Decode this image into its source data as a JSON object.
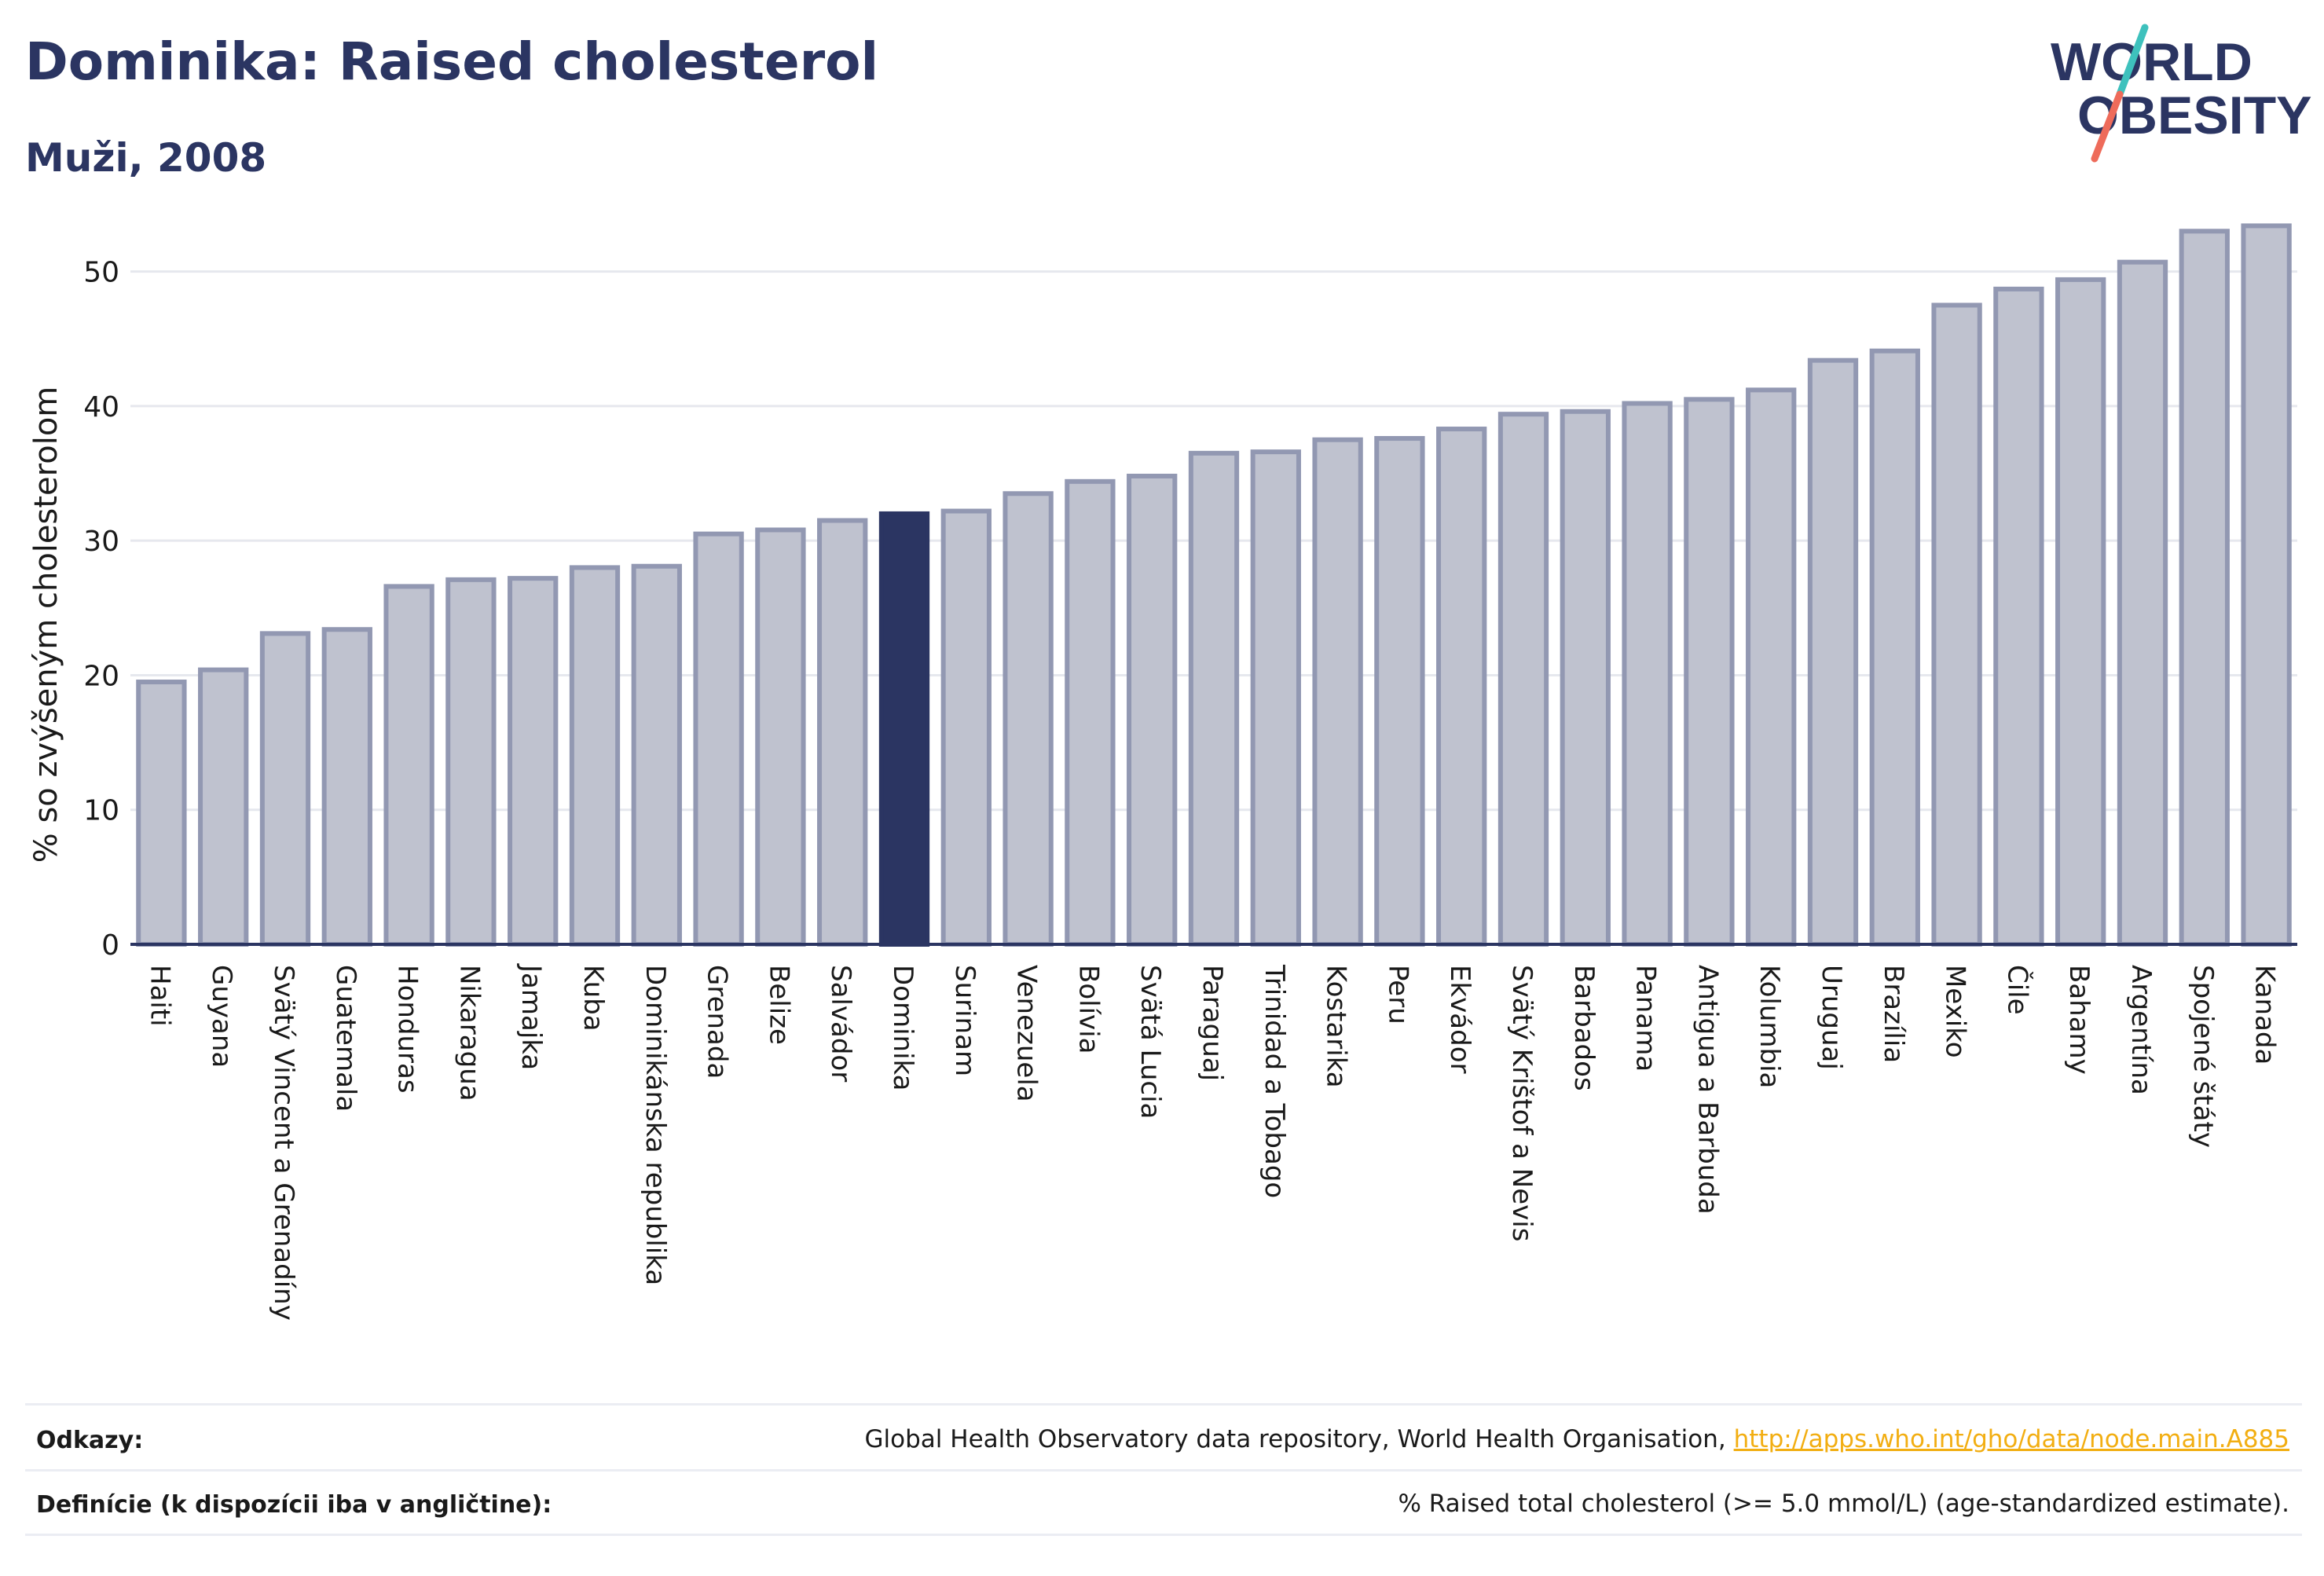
{
  "header": {
    "title": "Dominika: Raised cholesterol",
    "subtitle": "Muži, 2008"
  },
  "logo": {
    "line1": "WORLD",
    "line2": "OBESITY"
  },
  "footer": {
    "refs_label": "Odkazy:",
    "refs_text": "Global Health Observatory data repository, World Health Organisation, ",
    "refs_link": "http://apps.who.int/gho/data/node.main.A885",
    "defs_label": "Definície (k dispozícii iba v angličtine):",
    "defs_text": "% Raised total cholesterol (>= 5.0 mmol/L) (age-standardized estimate)."
  },
  "colors": {
    "bar": "#bfc2cf",
    "bar_border": "#9298b2",
    "highlight": "#2b3562",
    "grid": "#e6e8ee",
    "axis": "#2b3562",
    "logo_text": "#2b3562",
    "logo_slash_teal": "#3ec1bd",
    "logo_slash_coral": "#ee6b5a",
    "link": "#f2ae12"
  },
  "chart_data": {
    "type": "bar",
    "ylabel": "% so zvýšeným cholesterolom",
    "ylim": [
      0,
      55
    ],
    "yticks": [
      0,
      10,
      20,
      30,
      40,
      50
    ],
    "grid": true,
    "highlight": "Dominika",
    "categories": [
      "Haiti",
      "Guyana",
      "Svätý Vincent a Grenadíny",
      "Guatemala",
      "Honduras",
      "Nikaragua",
      "Jamajka",
      "Kuba",
      "Dominikánska republika",
      "Grenada",
      "Belize",
      "Salvádor",
      "Dominika",
      "Surinam",
      "Venezuela",
      "Bolívia",
      "Svätá Lucia",
      "Paraguaj",
      "Trinidad a Tobago",
      "Kostarika",
      "Peru",
      "Ekvádor",
      "Svätý Krištof a Nevis",
      "Barbados",
      "Panama",
      "Antigua a Barbuda",
      "Kolumbia",
      "Uruguaj",
      "Brazília",
      "Mexiko",
      "Čile",
      "Bahamy",
      "Argentína",
      "Spojené štáty",
      "Kanada"
    ],
    "values": [
      19.5,
      20.4,
      23.1,
      23.4,
      26.6,
      27.1,
      27.2,
      28.0,
      28.1,
      30.5,
      30.8,
      31.5,
      32.0,
      32.2,
      33.5,
      34.4,
      34.8,
      36.5,
      36.6,
      37.5,
      37.6,
      38.3,
      39.4,
      39.6,
      40.2,
      40.5,
      41.2,
      43.4,
      44.1,
      47.5,
      48.7,
      49.4,
      50.7,
      53.0,
      53.4
    ]
  }
}
